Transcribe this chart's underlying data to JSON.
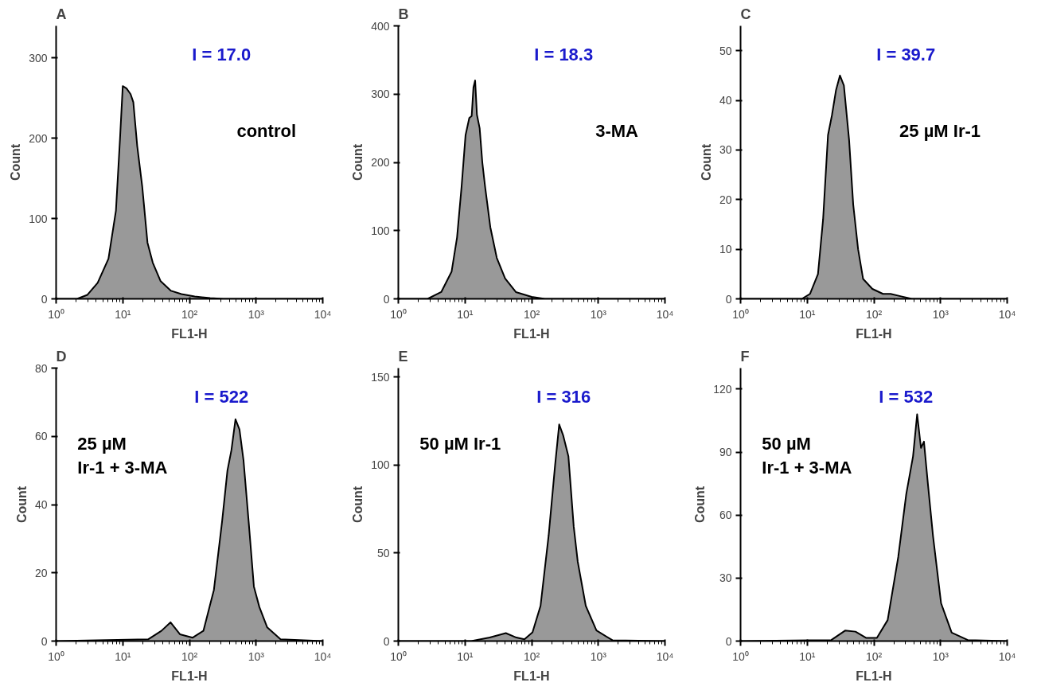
{
  "chart_data": [
    {
      "type": "area",
      "title": "A",
      "xlabel": "FL1-H",
      "ylabel": "Count",
      "log": "x",
      "grid": false,
      "annotations": [
        "I = 17.0",
        "control"
      ],
      "xlim": [
        1,
        10000
      ],
      "ylim": [
        0,
        340
      ],
      "yticks": [
        0,
        100,
        200,
        300
      ],
      "xticks": [
        {
          "value": 1,
          "label": "10⁰"
        },
        {
          "value": 10,
          "label": "10¹"
        },
        {
          "value": 100,
          "label": "10²"
        },
        {
          "value": 1000,
          "label": "10³"
        },
        {
          "value": 10000,
          "label": "10⁴"
        }
      ],
      "series": [
        {
          "color": "#999999",
          "x": [
            1,
            2.06,
            2.95,
            4.2,
            6.1,
            7.9,
            9.1,
            10,
            11.4,
            13.1,
            14.4,
            16.5,
            19.6,
            23.5,
            28.2,
            37,
            53,
            76,
            120,
            205,
            323,
            10000
          ],
          "values": [
            0,
            0,
            5,
            20,
            50,
            110,
            200,
            265,
            262,
            255,
            245,
            190,
            140,
            70,
            45,
            22,
            10,
            6,
            3,
            1,
            0,
            0
          ]
        }
      ]
    },
    {
      "type": "area",
      "title": "B",
      "xlabel": "FL1-H",
      "ylabel": "Count",
      "log": "x",
      "grid": false,
      "annotations": [
        "I = 18.3",
        "3-MA"
      ],
      "xlim": [
        1,
        10000
      ],
      "ylim": [
        0,
        400
      ],
      "yticks": [
        0,
        100,
        200,
        300,
        400
      ],
      "xticks": [
        {
          "value": 1,
          "label": "10⁰"
        },
        {
          "value": 10,
          "label": "10¹"
        },
        {
          "value": 100,
          "label": "10²"
        },
        {
          "value": 1000,
          "label": "10³"
        },
        {
          "value": 10000,
          "label": "10⁴"
        }
      ],
      "series": [
        {
          "color": "#999999",
          "x": [
            1,
            2.75,
            4.4,
            6.3,
            7.6,
            8.9,
            10.2,
            11.6,
            12.6,
            13.4,
            14.2,
            15.1,
            16.6,
            18.2,
            20,
            24,
            30,
            40,
            58,
            100,
            158,
            10000
          ],
          "values": [
            0,
            0,
            10,
            40,
            90,
            165,
            240,
            265,
            268,
            310,
            320,
            270,
            250,
            200,
            165,
            105,
            60,
            30,
            10,
            3,
            0,
            0
          ]
        }
      ]
    },
    {
      "type": "area",
      "title": "C",
      "xlabel": "FL1-H",
      "ylabel": "Count",
      "log": "x",
      "grid": false,
      "annotations": [
        "I = 39.7",
        "25 µM Ir-1"
      ],
      "xlim": [
        1,
        10000
      ],
      "ylim": [
        0,
        55
      ],
      "yticks": [
        0,
        10,
        20,
        30,
        40,
        50
      ],
      "xticks": [
        {
          "value": 1,
          "label": "10⁰"
        },
        {
          "value": 10,
          "label": "10¹"
        },
        {
          "value": 100,
          "label": "10²"
        },
        {
          "value": 1000,
          "label": "10³"
        },
        {
          "value": 10000,
          "label": "10⁴"
        }
      ],
      "series": [
        {
          "color": "#999999",
          "x": [
            1,
            8.3,
            11,
            14.5,
            17.3,
            20.5,
            23.5,
            27,
            31,
            35.5,
            42.5,
            49,
            58,
            69,
            95,
            137,
            178,
            257,
            371,
            10000
          ],
          "values": [
            0,
            0,
            1,
            5,
            16,
            33,
            37,
            42,
            45,
            43,
            32,
            19,
            10,
            4,
            2,
            1,
            1,
            0.5,
            0,
            0
          ]
        }
      ]
    },
    {
      "type": "area",
      "title": "D",
      "xlabel": "FL1-H",
      "ylabel": "Count",
      "log": "x",
      "grid": false,
      "annotations": [
        "I = 522",
        "25 µM\nIr-1 + 3-MA"
      ],
      "xlim": [
        1,
        10000
      ],
      "ylim": [
        0,
        80
      ],
      "yticks": [
        0,
        20,
        40,
        60,
        80
      ],
      "xticks": [
        {
          "value": 1,
          "label": "10⁰"
        },
        {
          "value": 10,
          "label": "10¹"
        },
        {
          "value": 100,
          "label": "10²"
        },
        {
          "value": 1000,
          "label": "10³"
        },
        {
          "value": 10000,
          "label": "10⁴"
        }
      ],
      "series": [
        {
          "color": "#999999",
          "x": [
            1,
            24,
            38,
            52,
            72,
            112,
            162,
            233,
            309,
            372,
            427,
            491,
            564,
            648,
            774,
            927,
            1120,
            1470,
            2330,
            10000
          ],
          "values": [
            0,
            0.5,
            3,
            5.5,
            2,
            1,
            3,
            15,
            35,
            50,
            56,
            65,
            62,
            53,
            35,
            16,
            10,
            4,
            0.5,
            0
          ]
        }
      ]
    },
    {
      "type": "area",
      "title": "E",
      "xlabel": "FL1-H",
      "ylabel": "Count",
      "log": "x",
      "grid": false,
      "annotations": [
        "I = 316",
        "50 µM Ir-1"
      ],
      "xlim": [
        1,
        10000
      ],
      "ylim": [
        0,
        155
      ],
      "yticks": [
        0,
        50,
        100,
        150
      ],
      "xticks": [
        {
          "value": 1,
          "label": "10⁰"
        },
        {
          "value": 10,
          "label": "10¹"
        },
        {
          "value": 100,
          "label": "10²"
        },
        {
          "value": 1000,
          "label": "10³"
        },
        {
          "value": 10000,
          "label": "10⁴"
        }
      ],
      "series": [
        {
          "color": "#999999",
          "x": [
            1,
            12.4,
            23.5,
            41,
            59,
            78,
            103,
            136,
            180,
            225,
            259,
            296,
            356,
            428,
            492,
            649,
            938,
            1630,
            10000
          ],
          "values": [
            0,
            0,
            2,
            4.5,
            2,
            1,
            5,
            20,
            60,
            100,
            123,
            117,
            105,
            65,
            45,
            20,
            6,
            0.5,
            0
          ]
        }
      ]
    },
    {
      "type": "area",
      "title": "F",
      "xlabel": "FL1-H",
      "ylabel": "Count",
      "log": "x",
      "grid": false,
      "annotations": [
        "I = 532",
        "50 µM\nIr-1 + 3-MA"
      ],
      "xlim": [
        1,
        10000
      ],
      "ylim": [
        0,
        130
      ],
      "yticks": [
        0,
        30,
        60,
        90,
        120
      ],
      "xticks": [
        {
          "value": 1,
          "label": "10⁰"
        },
        {
          "value": 10,
          "label": "10¹"
        },
        {
          "value": 100,
          "label": "10²"
        },
        {
          "value": 1000,
          "label": "10³"
        },
        {
          "value": 10000,
          "label": "10⁴"
        }
      ],
      "series": [
        {
          "color": "#999999",
          "x": [
            1,
            23,
            37,
            53,
            77,
            111,
            161,
            232,
            306,
            387,
            446,
            509,
            564,
            646,
            772,
            1020,
            1470,
            2560,
            10000
          ],
          "values": [
            0,
            0.5,
            5,
            4.5,
            1.5,
            1.5,
            10,
            40,
            70,
            88,
            108,
            92,
            95,
            75,
            50,
            18,
            4,
            0.5,
            0
          ]
        }
      ]
    }
  ]
}
